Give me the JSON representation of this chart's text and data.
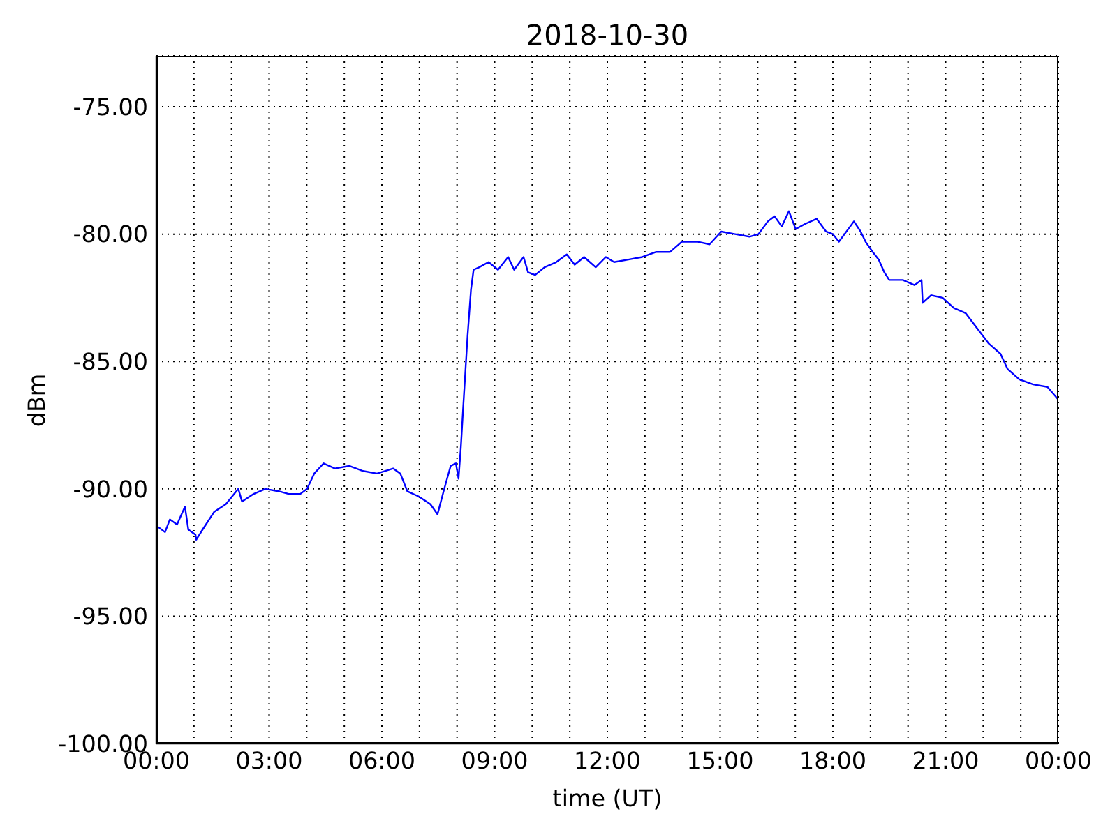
{
  "chart_data": {
    "type": "line",
    "title": "2018-10-30",
    "xlabel": "time (UT)",
    "ylabel": "dBm",
    "x": [
      0.05,
      0.23,
      0.36,
      0.55,
      0.76,
      0.85,
      1.04,
      1.06,
      1.23,
      1.54,
      1.85,
      2.18,
      2.28,
      2.59,
      2.9,
      3.27,
      3.52,
      3.83,
      4.01,
      4.2,
      4.45,
      4.75,
      5.13,
      5.5,
      5.87,
      6.3,
      6.49,
      6.68,
      6.98,
      7.29,
      7.48,
      7.66,
      7.83,
      7.97,
      8.04,
      8.1,
      8.16,
      8.28,
      8.37,
      8.44,
      8.59,
      8.84,
      9.09,
      9.36,
      9.52,
      9.77,
      9.89,
      10.08,
      10.33,
      10.64,
      10.92,
      11.13,
      11.38,
      11.69,
      11.96,
      12.18,
      12.56,
      12.93,
      13.3,
      13.67,
      13.98,
      14.41,
      14.72,
      15.03,
      15.4,
      15.78,
      16.02,
      16.27,
      16.45,
      16.64,
      16.83,
      17.01,
      17.26,
      17.57,
      17.82,
      18.0,
      18.16,
      18.31,
      18.56,
      18.74,
      18.87,
      19.06,
      19.22,
      19.37,
      19.5,
      19.86,
      20.17,
      20.36,
      20.39,
      20.61,
      20.92,
      21.22,
      21.53,
      21.84,
      22.15,
      22.46,
      22.65,
      22.96,
      23.33,
      23.71,
      24.0
    ],
    "series": [
      {
        "color": "#0000ff",
        "values": [
          -91.5,
          -91.7,
          -91.2,
          -91.4,
          -90.7,
          -91.6,
          -91.8,
          -92.0,
          -91.6,
          -90.9,
          -90.6,
          -90.0,
          -90.5,
          -90.2,
          -90.0,
          -90.1,
          -90.2,
          -90.2,
          -90.0,
          -89.4,
          -89.0,
          -89.2,
          -89.1,
          -89.3,
          -89.4,
          -89.2,
          -89.4,
          -90.1,
          -90.3,
          -90.6,
          -91.0,
          -90.0,
          -89.1,
          -89.0,
          -89.6,
          -88.4,
          -86.9,
          -84.0,
          -82.2,
          -81.4,
          -81.3,
          -81.1,
          -81.4,
          -80.9,
          -81.4,
          -80.9,
          -81.5,
          -81.6,
          -81.3,
          -81.1,
          -80.8,
          -81.2,
          -80.9,
          -81.3,
          -80.9,
          -81.1,
          -81.0,
          -80.9,
          -80.7,
          -80.7,
          -80.3,
          -80.3,
          -80.4,
          -79.9,
          -80.0,
          -80.1,
          -80.0,
          -79.5,
          -79.3,
          -79.7,
          -79.1,
          -79.8,
          -79.6,
          -79.4,
          -79.9,
          -80.0,
          -80.3,
          -80.0,
          -79.5,
          -79.9,
          -80.3,
          -80.7,
          -81.0,
          -81.5,
          -81.8,
          -81.8,
          -82.0,
          -81.8,
          -82.7,
          -82.4,
          -82.5,
          -82.9,
          -83.1,
          -83.7,
          -84.3,
          -84.7,
          -85.3,
          -85.7,
          -85.9,
          -86.0,
          -86.5
        ]
      }
    ],
    "xlim": [
      0,
      24
    ],
    "xticks": [
      {
        "value": 0,
        "label": "00:00"
      },
      {
        "value": 1,
        "label": null
      },
      {
        "value": 2,
        "label": null
      },
      {
        "value": 3,
        "label": "03:00"
      },
      {
        "value": 4,
        "label": null
      },
      {
        "value": 5,
        "label": null
      },
      {
        "value": 6,
        "label": "06:00"
      },
      {
        "value": 7,
        "label": null
      },
      {
        "value": 8,
        "label": null
      },
      {
        "value": 9,
        "label": "09:00"
      },
      {
        "value": 10,
        "label": null
      },
      {
        "value": 11,
        "label": null
      },
      {
        "value": 12,
        "label": "12:00"
      },
      {
        "value": 13,
        "label": null
      },
      {
        "value": 14,
        "label": null
      },
      {
        "value": 15,
        "label": "15:00"
      },
      {
        "value": 16,
        "label": null
      },
      {
        "value": 17,
        "label": null
      },
      {
        "value": 18,
        "label": "18:00"
      },
      {
        "value": 19,
        "label": null
      },
      {
        "value": 20,
        "label": null
      },
      {
        "value": 21,
        "label": "21:00"
      },
      {
        "value": 22,
        "label": null
      },
      {
        "value": 23,
        "label": null
      },
      {
        "value": 24,
        "label": "00:00"
      }
    ],
    "ylim": [
      -100,
      -73
    ],
    "yticks": [
      {
        "value": -100,
        "label": "-100.00"
      },
      {
        "value": -95,
        "label": "-95.00"
      },
      {
        "value": -90,
        "label": "-90.00"
      },
      {
        "value": -85,
        "label": "-85.00"
      },
      {
        "value": -80,
        "label": "-80.00"
      },
      {
        "value": -75,
        "label": "-75.00"
      }
    ],
    "grid": true
  }
}
